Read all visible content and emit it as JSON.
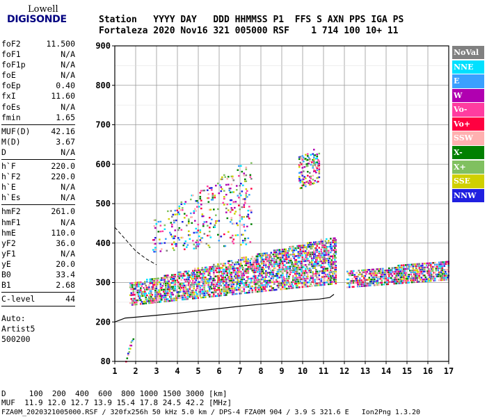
{
  "logo": {
    "line1": "Lowell",
    "line2": "DIGISONDE"
  },
  "header": {
    "line1": "Station   YYYY DAY   DDD HHMMSS P1  FFS S AXN PPS IGA PS",
    "line2": "Fortaleza 2020 Nov16 321 005000 RSF    1 714 100 10+ 11"
  },
  "params": {
    "group1": [
      {
        "name": "foF2",
        "value": "11.500"
      },
      {
        "name": "foF1",
        "value": "N/A"
      },
      {
        "name": "foF1p",
        "value": "N/A"
      },
      {
        "name": "foE",
        "value": "N/A"
      },
      {
        "name": "foEp",
        "value": "0.40"
      },
      {
        "name": "fxI",
        "value": "11.60"
      },
      {
        "name": "foEs",
        "value": "N/A"
      },
      {
        "name": "fmin",
        "value": "1.65"
      }
    ],
    "group2": [
      {
        "name": "MUF(D)",
        "value": "42.16"
      },
      {
        "name": "M(D)",
        "value": "3.67"
      },
      {
        "name": "D",
        "value": "N/A"
      }
    ],
    "group3": [
      {
        "name": "h`F",
        "value": "220.0"
      },
      {
        "name": "h`F2",
        "value": "220.0"
      },
      {
        "name": "h`E",
        "value": "N/A"
      },
      {
        "name": "h`Es",
        "value": "N/A"
      }
    ],
    "group4": [
      {
        "name": "hmF2",
        "value": "261.0"
      },
      {
        "name": "hmF1",
        "value": "N/A"
      },
      {
        "name": "hmE",
        "value": "110.0"
      },
      {
        "name": "yF2",
        "value": "36.0"
      },
      {
        "name": "yF1",
        "value": "N/A"
      },
      {
        "name": "yE",
        "value": "20.0"
      },
      {
        "name": "B0",
        "value": "33.4"
      },
      {
        "name": "B1",
        "value": "2.68"
      }
    ],
    "group5": [
      {
        "name": "C-level",
        "value": "44"
      }
    ],
    "auto_label": "Auto:",
    "auto_software": "Artist5",
    "auto_version": "500200"
  },
  "legend": [
    {
      "label": "NoVal",
      "color": "#808080"
    },
    {
      "label": "NNE",
      "color": "#00e0ff"
    },
    {
      "label": "E",
      "color": "#3aa0ff"
    },
    {
      "label": "W",
      "color": "#b000b0"
    },
    {
      "label": "Vo-",
      "color": "#ff3ca0"
    },
    {
      "label": "Vo+",
      "color": "#ff0040"
    },
    {
      "label": "SSW",
      "color": "#ffb0b0"
    },
    {
      "label": "X-",
      "color": "#008000"
    },
    {
      "label": "X+",
      "color": "#80c060"
    },
    {
      "label": "SSE",
      "color": "#d0d000"
    },
    {
      "label": "NNW",
      "color": "#2020e0"
    }
  ],
  "bottom": {
    "line1": "D     100  200  400  600  800 1000 1500 3000 [km]",
    "line2": "MUF  11.9 12.0 12.7 13.9 15.4 17.8 24.5 42.2 [MHz]",
    "line3": "FZA0M_2020321005000.RSF / 320fx256h 50 kHz 5.0 km / DPS-4 FZA0M 904 / 3.9 S 321.6 E   Ion2Png 1.3.20"
  },
  "chart_data": {
    "type": "scatter",
    "x_ticks": [
      "1",
      "2",
      "3",
      "4",
      "5",
      "6",
      "7",
      "8",
      "9",
      "10",
      "11",
      "12",
      "13",
      "14",
      "15",
      "16",
      "17"
    ],
    "y_ticks": [
      "80",
      "200",
      "300",
      "400",
      "500",
      "600",
      "700",
      "800",
      "900"
    ],
    "xlim": [
      1,
      17
    ],
    "y_axis_values": [
      80,
      200,
      300,
      400,
      500,
      600,
      700,
      800,
      900
    ],
    "grid": true,
    "legend_position": "right",
    "trace_curve": {
      "description": "",
      "x": [
        1.0,
        1.5,
        2.0,
        3.0,
        4.0,
        5.0,
        6.0,
        7.0,
        8.0,
        9.0,
        10.0,
        10.8,
        11.3,
        11.5
      ],
      "y": [
        200,
        210,
        212,
        217,
        222,
        228,
        234,
        240,
        245,
        250,
        255,
        258,
        262,
        270
      ]
    },
    "dashed_curve": {
      "x": [
        1.0,
        1.5,
        2.0,
        2.5,
        3.0
      ],
      "y": [
        440,
        410,
        380,
        360,
        345
      ]
    },
    "clusters": [
      {
        "x0": 1.7,
        "x1": 11.6,
        "ylo": [
          245,
          300
        ],
        "yhi": [
          300,
          420
        ],
        "density": 0.55
      },
      {
        "x0": 2.8,
        "x1": 7.5,
        "ylo": [
          380,
          400
        ],
        "yhi": [
          460,
          620
        ],
        "density": 0.12
      },
      {
        "x0": 9.8,
        "x1": 10.8,
        "ylo": [
          540,
          560
        ],
        "yhi": [
          620,
          650
        ],
        "density": 0.3
      },
      {
        "x0": 12.1,
        "x1": 17.0,
        "ylo": [
          290,
          310
        ],
        "yhi": [
          330,
          360
        ],
        "density": 0.6
      },
      {
        "x0": 1.5,
        "x1": 1.9,
        "ylo": [
          82,
          160
        ],
        "yhi": [
          90,
          175
        ],
        "density": 0.5
      }
    ]
  }
}
